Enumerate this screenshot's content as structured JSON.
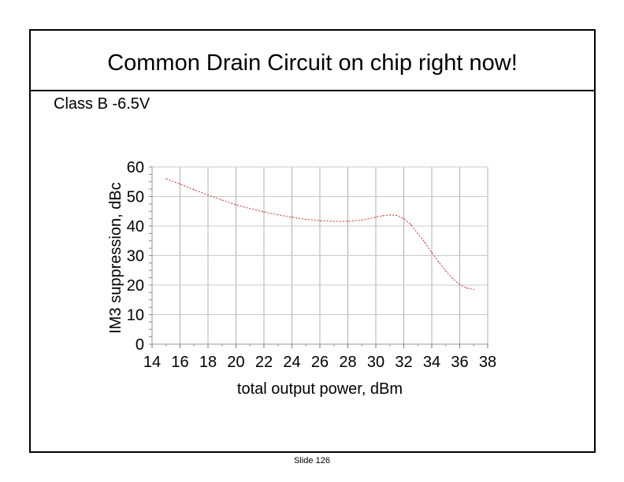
{
  "slide": {
    "title": "Common Drain Circuit on chip right now!",
    "subtitle": "Class B -6.5V",
    "footer": "Slide 126"
  },
  "chart_data": {
    "type": "line",
    "xlabel": "total output power, dBm",
    "ylabel": "IM3 suppression, dBc",
    "xlim": [
      14,
      38
    ],
    "ylim": [
      0,
      60
    ],
    "xticks": [
      14,
      16,
      18,
      20,
      22,
      24,
      26,
      28,
      30,
      32,
      34,
      36,
      38
    ],
    "yticks": [
      0,
      10,
      20,
      30,
      40,
      50,
      60
    ],
    "grid": true,
    "series": [
      {
        "color": "#cc3333",
        "x": [
          15,
          16,
          17,
          18,
          19,
          20,
          21,
          22,
          23,
          24,
          25,
          26,
          27,
          28,
          29,
          30,
          30.5,
          31,
          31.5,
          32,
          32.5,
          33,
          33.5,
          34,
          34.5,
          35,
          35.5,
          36,
          36.5,
          37
        ],
        "y": [
          56,
          54.2,
          52.3,
          50.5,
          48.8,
          47.2,
          45.9,
          44.8,
          43.8,
          43,
          42.3,
          41.8,
          41.6,
          41.6,
          42,
          43,
          43.5,
          43.8,
          43.6,
          42.5,
          40.5,
          37.5,
          34.5,
          31,
          27.8,
          24.8,
          22.2,
          20.2,
          19,
          18.5
        ]
      }
    ]
  }
}
